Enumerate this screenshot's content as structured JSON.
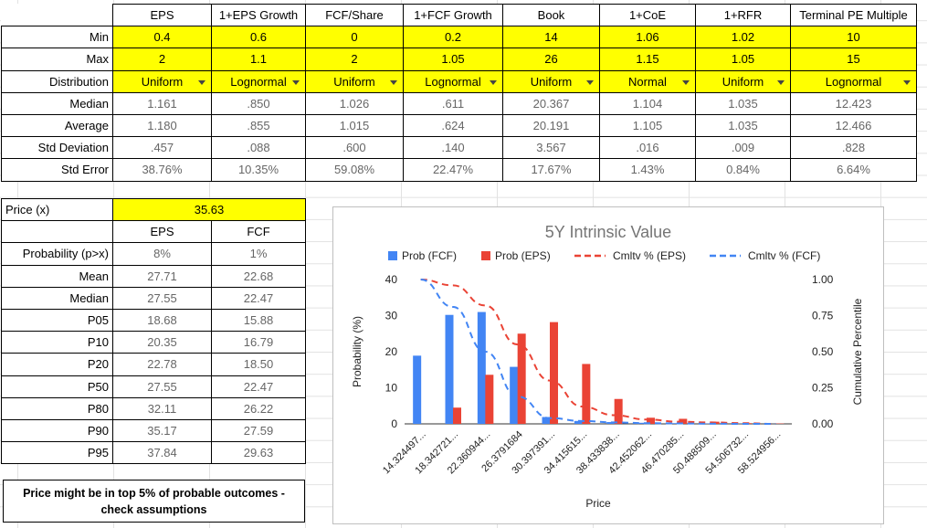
{
  "summary": {
    "columns": [
      "EPS",
      "1+EPS Growth",
      "FCF/Share",
      "1+FCF Growth",
      "Book",
      "1+CoE",
      "1+RFR",
      "Terminal PE Multiple"
    ],
    "rows": [
      {
        "label": "Min",
        "type": "input",
        "values": [
          "0.4",
          "0.6",
          "0",
          "0.2",
          "14",
          "1.06",
          "1.02",
          "10"
        ]
      },
      {
        "label": "Max",
        "type": "input",
        "values": [
          "2",
          "1.1",
          "2",
          "1.05",
          "26",
          "1.15",
          "1.05",
          "15"
        ]
      },
      {
        "label": "Distribution",
        "type": "dropdown",
        "values": [
          "Uniform",
          "Lognormal",
          "Uniform",
          "Lognormal",
          "Uniform",
          "Normal",
          "Uniform",
          "Lognormal"
        ]
      },
      {
        "label": "Median",
        "type": "value",
        "values": [
          "1.161",
          ".850",
          "1.026",
          ".611",
          "20.367",
          "1.104",
          "1.035",
          "12.423"
        ]
      },
      {
        "label": "Average",
        "type": "value",
        "values": [
          "1.180",
          ".855",
          "1.015",
          ".624",
          "20.191",
          "1.105",
          "1.035",
          "12.466"
        ]
      },
      {
        "label": "Std Deviation",
        "type": "value",
        "values": [
          ".457",
          ".088",
          ".600",
          ".140",
          "3.567",
          ".016",
          ".009",
          ".828"
        ]
      },
      {
        "label": "Std Error",
        "type": "value",
        "values": [
          "38.76%",
          "10.35%",
          "59.08%",
          "22.47%",
          "17.67%",
          "1.43%",
          "0.84%",
          "6.64%"
        ]
      }
    ]
  },
  "valuation": {
    "price_label": "Price (x)",
    "price_value": "35.63",
    "columns": [
      "EPS",
      "FCF"
    ],
    "rows": [
      {
        "label": "Probability (p>x)",
        "values": [
          "8%",
          "1%"
        ]
      },
      {
        "label": "Mean",
        "values": [
          "27.71",
          "22.68"
        ]
      },
      {
        "label": "Median",
        "values": [
          "27.55",
          "22.47"
        ]
      },
      {
        "label": "P05",
        "values": [
          "18.68",
          "15.88"
        ]
      },
      {
        "label": "P10",
        "values": [
          "20.35",
          "16.79"
        ]
      },
      {
        "label": "P20",
        "values": [
          "22.78",
          "18.50"
        ]
      },
      {
        "label": "P50",
        "values": [
          "27.55",
          "22.47"
        ]
      },
      {
        "label": "P80",
        "values": [
          "32.11",
          "26.22"
        ]
      },
      {
        "label": "P90",
        "values": [
          "35.17",
          "27.59"
        ]
      },
      {
        "label": "P95",
        "values": [
          "37.84",
          "29.63"
        ]
      }
    ]
  },
  "note": {
    "line1": "Price might be in top 5% of probable outcomes -",
    "line2": "check assumptions"
  },
  "chart_data": {
    "type": "bar",
    "title": "5Y Intrinsic Value",
    "xlabel": "Price",
    "ylabel": "Probability (%)",
    "y2label": "Cumulative Percentile",
    "ylim": [
      0,
      40
    ],
    "yticks": [
      "0",
      "10",
      "20",
      "30",
      "40"
    ],
    "y2lim": [
      0,
      1
    ],
    "y2ticks": [
      "0.00",
      "0.25",
      "0.50",
      "0.75",
      "1.00"
    ],
    "legend_position": "top",
    "grid": false,
    "categories": [
      "14.324497...",
      "18.342721...",
      "22.360944...",
      "26.3791684",
      "30.397391...",
      "34.415615...",
      "38.433838...",
      "42.452062...",
      "46.470285...",
      "50.488509...",
      "54.506732...",
      "58.524956..."
    ],
    "series": [
      {
        "name": "Prob (FCF)",
        "kind": "bar",
        "color": "#4285f4",
        "values": [
          18.9,
          30.2,
          31.0,
          15.8,
          1.9,
          0.8,
          0.5,
          0.3,
          0.2,
          0.1,
          0.05,
          0.02
        ]
      },
      {
        "name": "Prob (EPS)",
        "kind": "bar",
        "color": "#ea4335",
        "values": [
          0,
          4.5,
          13.6,
          25.0,
          28.2,
          16.6,
          6.9,
          1.7,
          1.4,
          0.6,
          0.2,
          0.1
        ]
      },
      {
        "name": "Cmltv % (EPS)",
        "kind": "dashed-line",
        "color": "#ea4335",
        "axis": "right",
        "values": [
          1.0,
          0.96,
          0.82,
          0.55,
          0.3,
          0.12,
          0.06,
          0.03,
          0.015,
          0.01,
          0.005,
          0.0
        ]
      },
      {
        "name": "Cmltv % (FCF)",
        "kind": "dashed-line",
        "color": "#4285f4",
        "axis": "right",
        "values": [
          1.0,
          0.81,
          0.5,
          0.19,
          0.04,
          0.02,
          0.01,
          0.005,
          0.003,
          0.001,
          0.0,
          0.0
        ]
      }
    ]
  }
}
